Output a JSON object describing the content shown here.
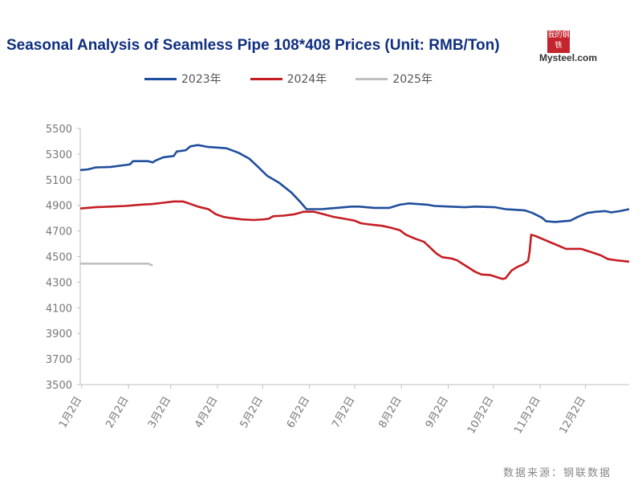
{
  "title": "Seasonal Analysis of Seamless Pipe 108*408 Prices (Unit: RMB/Ton)",
  "logo": {
    "mark_text": "我的钢铁",
    "brand": "Mysteel.com"
  },
  "source": "数据来源：钢联数据",
  "legend": [
    {
      "label": "2023年",
      "color": "#1f4e9c"
    },
    {
      "label": "2024年",
      "color": "#c41e24"
    },
    {
      "label": "2025年",
      "color": "#bfbfbf"
    }
  ],
  "chart_data": {
    "type": "line",
    "title": "Seasonal Analysis of Seamless Pipe 108*408 Prices (Unit: RMB/Ton)",
    "xlabel": "",
    "ylabel": "RMB/Ton",
    "ylim": [
      3500,
      5500
    ],
    "xlim": [
      0,
      364
    ],
    "yticks": [
      5500,
      5300,
      5100,
      4900,
      4700,
      4500,
      4300,
      4100,
      3900,
      3700,
      3500
    ],
    "xticks": [
      {
        "label": "1月2日",
        "day": 1
      },
      {
        "label": "2月2日",
        "day": 32
      },
      {
        "label": "3月2日",
        "day": 60
      },
      {
        "label": "4月2日",
        "day": 91
      },
      {
        "label": "5月2日",
        "day": 121
      },
      {
        "label": "6月2日",
        "day": 152
      },
      {
        "label": "7月2日",
        "day": 182
      },
      {
        "label": "8月2日",
        "day": 213
      },
      {
        "label": "9月2日",
        "day": 244
      },
      {
        "label": "10月2日",
        "day": 274
      },
      {
        "label": "11月2日",
        "day": 305
      },
      {
        "label": "12月2日",
        "day": 335
      }
    ],
    "legend_position": "top",
    "series": [
      {
        "name": "2023年",
        "color": "#1f4e9c",
        "points": [
          [
            0,
            5175
          ],
          [
            5,
            5180
          ],
          [
            10,
            5195
          ],
          [
            20,
            5200
          ],
          [
            30,
            5215
          ],
          [
            33,
            5220
          ],
          [
            35,
            5245
          ],
          [
            45,
            5245
          ],
          [
            48,
            5235
          ],
          [
            50,
            5250
          ],
          [
            55,
            5275
          ],
          [
            62,
            5285
          ],
          [
            64,
            5320
          ],
          [
            70,
            5330
          ],
          [
            73,
            5360
          ],
          [
            78,
            5370
          ],
          [
            85,
            5355
          ],
          [
            92,
            5350
          ],
          [
            97,
            5345
          ],
          [
            105,
            5310
          ],
          [
            112,
            5265
          ],
          [
            118,
            5200
          ],
          [
            124,
            5130
          ],
          [
            132,
            5075
          ],
          [
            140,
            5000
          ],
          [
            146,
            4925
          ],
          [
            150,
            4870
          ],
          [
            160,
            4870
          ],
          [
            165,
            4875
          ],
          [
            170,
            4880
          ],
          [
            175,
            4885
          ],
          [
            180,
            4890
          ],
          [
            185,
            4890
          ],
          [
            195,
            4880
          ],
          [
            205,
            4880
          ],
          [
            212,
            4905
          ],
          [
            218,
            4915
          ],
          [
            230,
            4905
          ],
          [
            235,
            4895
          ],
          [
            245,
            4890
          ],
          [
            255,
            4885
          ],
          [
            262,
            4890
          ],
          [
            275,
            4885
          ],
          [
            282,
            4870
          ],
          [
            295,
            4860
          ],
          [
            300,
            4840
          ],
          [
            306,
            4805
          ],
          [
            309,
            4775
          ],
          [
            315,
            4770
          ],
          [
            325,
            4780
          ],
          [
            330,
            4810
          ],
          [
            336,
            4840
          ],
          [
            342,
            4850
          ],
          [
            348,
            4855
          ],
          [
            352,
            4845
          ],
          [
            358,
            4855
          ],
          [
            364,
            4870
          ]
        ]
      },
      {
        "name": "2024年",
        "color": "#c41e24",
        "points": [
          [
            0,
            4875
          ],
          [
            10,
            4885
          ],
          [
            20,
            4890
          ],
          [
            30,
            4895
          ],
          [
            40,
            4905
          ],
          [
            48,
            4910
          ],
          [
            55,
            4920
          ],
          [
            62,
            4930
          ],
          [
            68,
            4930
          ],
          [
            72,
            4915
          ],
          [
            78,
            4890
          ],
          [
            85,
            4870
          ],
          [
            90,
            4830
          ],
          [
            95,
            4810
          ],
          [
            100,
            4800
          ],
          [
            107,
            4790
          ],
          [
            115,
            4785
          ],
          [
            122,
            4790
          ],
          [
            125,
            4795
          ],
          [
            128,
            4815
          ],
          [
            135,
            4820
          ],
          [
            142,
            4830
          ],
          [
            148,
            4850
          ],
          [
            155,
            4850
          ],
          [
            160,
            4835
          ],
          [
            168,
            4810
          ],
          [
            175,
            4795
          ],
          [
            182,
            4780
          ],
          [
            186,
            4760
          ],
          [
            192,
            4750
          ],
          [
            200,
            4740
          ],
          [
            206,
            4725
          ],
          [
            212,
            4705
          ],
          [
            216,
            4670
          ],
          [
            222,
            4640
          ],
          [
            228,
            4615
          ],
          [
            232,
            4570
          ],
          [
            236,
            4525
          ],
          [
            240,
            4495
          ],
          [
            246,
            4485
          ],
          [
            250,
            4470
          ],
          [
            254,
            4440
          ],
          [
            258,
            4410
          ],
          [
            262,
            4380
          ],
          [
            266,
            4360
          ],
          [
            272,
            4355
          ],
          [
            276,
            4340
          ],
          [
            280,
            4325
          ],
          [
            282,
            4330
          ],
          [
            286,
            4390
          ],
          [
            290,
            4420
          ],
          [
            294,
            4440
          ],
          [
            297,
            4465
          ],
          [
            298,
            4540
          ],
          [
            299,
            4670
          ],
          [
            302,
            4660
          ],
          [
            308,
            4630
          ],
          [
            312,
            4610
          ],
          [
            318,
            4580
          ],
          [
            322,
            4560
          ],
          [
            326,
            4560
          ],
          [
            332,
            4560
          ],
          [
            336,
            4545
          ],
          [
            340,
            4530
          ],
          [
            345,
            4510
          ],
          [
            350,
            4480
          ],
          [
            356,
            4470
          ],
          [
            360,
            4465
          ],
          [
            364,
            4460
          ]
        ]
      },
      {
        "name": "2025年",
        "color": "#bfbfbf",
        "points": [
          [
            0,
            4445
          ],
          [
            10,
            4445
          ],
          [
            20,
            4445
          ],
          [
            30,
            4445
          ],
          [
            40,
            4445
          ],
          [
            45,
            4445
          ],
          [
            48,
            4430
          ]
        ]
      }
    ]
  }
}
